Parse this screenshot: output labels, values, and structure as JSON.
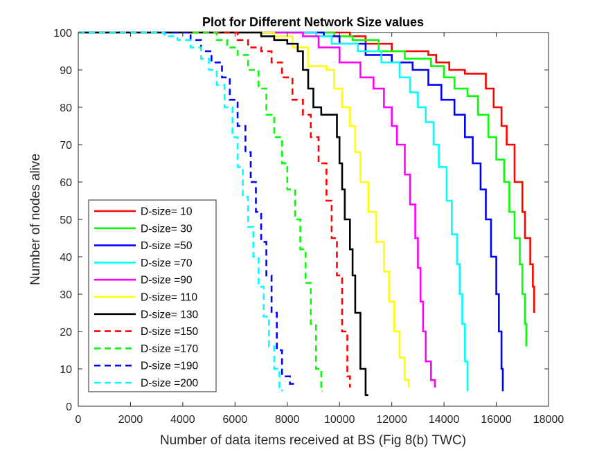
{
  "chart_data": {
    "type": "line",
    "title": "Plot for Different Network Size values",
    "xlabel": "Number of data items received at BS (Fig 8(b) TWC)",
    "ylabel": "Number of nodes alive",
    "xlim": [
      0,
      18000
    ],
    "ylim": [
      0,
      100
    ],
    "xticks": [
      0,
      2000,
      4000,
      6000,
      8000,
      10000,
      12000,
      14000,
      16000,
      18000
    ],
    "yticks": [
      0,
      10,
      20,
      30,
      40,
      50,
      60,
      70,
      80,
      90,
      100
    ],
    "grid": false,
    "legend_position": "bottom-left",
    "series": [
      {
        "name": "D-size= 10",
        "color": "#ff0000",
        "dash": false,
        "x": [
          0,
          10400,
          11000,
          12000,
          13400,
          13700,
          14200,
          14800,
          15600,
          15900,
          16200,
          16400,
          16700,
          17000,
          17100,
          17300,
          17400,
          17450
        ],
        "y": [
          100,
          99,
          97,
          95,
          94,
          92,
          90,
          89,
          85,
          80,
          75,
          70,
          60,
          52,
          45,
          38,
          32,
          25
        ]
      },
      {
        "name": "D-size= 30",
        "color": "#00ff00",
        "dash": false,
        "x": [
          0,
          9800,
          10500,
          11500,
          12500,
          13500,
          14000,
          14400,
          14900,
          15300,
          15700,
          16000,
          16300,
          16500,
          16700,
          16900,
          17000,
          17100,
          17150
        ],
        "y": [
          100,
          99,
          98,
          95,
          93,
          91,
          88,
          85,
          83,
          78,
          72,
          66,
          60,
          52,
          45,
          38,
          30,
          22,
          16
        ]
      },
      {
        "name": "D-size =50",
        "color": "#0000ff",
        "dash": false,
        "x": [
          0,
          9400,
          10000,
          11000,
          12000,
          12800,
          13400,
          13900,
          14400,
          14800,
          15100,
          15400,
          15600,
          15800,
          16000,
          16100,
          16200,
          16250
        ],
        "y": [
          100,
          99,
          97,
          94,
          92,
          90,
          86,
          82,
          78,
          72,
          65,
          58,
          50,
          40,
          30,
          20,
          10,
          4
        ]
      },
      {
        "name": "D-size =70",
        "color": "#00ffff",
        "dash": false,
        "x": [
          0,
          9100,
          9700,
          10700,
          11600,
          12300,
          12700,
          13000,
          13300,
          13600,
          13800,
          14100,
          14300,
          14500,
          14600,
          14700,
          14800,
          14900
        ],
        "y": [
          100,
          99,
          97,
          95,
          92,
          88,
          84,
          80,
          76,
          70,
          64,
          55,
          46,
          38,
          30,
          22,
          12,
          4
        ]
      },
      {
        "name": "D-size =90",
        "color": "#ff00ff",
        "dash": false,
        "x": [
          0,
          8600,
          9200,
          10000,
          10800,
          11300,
          11700,
          12000,
          12200,
          12500,
          12700,
          12900,
          13000,
          13100,
          13200,
          13300,
          13500,
          13650
        ],
        "y": [
          100,
          99,
          96,
          92,
          88,
          85,
          80,
          75,
          70,
          62,
          54,
          45,
          37,
          28,
          20,
          12,
          7,
          5
        ]
      },
      {
        "name": "D-size= 110",
        "color": "#ffff00",
        "dash": false,
        "x": [
          0,
          7500,
          8200,
          8800,
          9500,
          9800,
          10100,
          10400,
          10600,
          10800,
          11100,
          11400,
          11700,
          11900,
          12100,
          12300,
          12500,
          12650
        ],
        "y": [
          100,
          99,
          96,
          91,
          90,
          85,
          80,
          75,
          68,
          60,
          52,
          44,
          36,
          28,
          20,
          13,
          7,
          5
        ]
      },
      {
        "name": "D-size= 130",
        "color": "#000000",
        "dash": false,
        "x": [
          0,
          7000,
          7500,
          8000,
          8400,
          8600,
          8800,
          9000,
          9300,
          9700,
          9900,
          10000,
          10100,
          10200,
          10400,
          10500,
          10600,
          10800,
          11000,
          11100
        ],
        "y": [
          100,
          99,
          98,
          97,
          95,
          90,
          85,
          80,
          78,
          78,
          72,
          65,
          58,
          50,
          42,
          35,
          25,
          10,
          3,
          3
        ]
      },
      {
        "name": "D-size =150",
        "color": "#ff0000",
        "dash": true,
        "x": [
          0,
          6100,
          6500,
          7000,
          7400,
          7800,
          8200,
          8600,
          8900,
          9200,
          9500,
          9700,
          9900,
          10100,
          10300,
          10400
        ],
        "y": [
          100,
          98,
          96,
          95,
          92,
          88,
          82,
          78,
          72,
          65,
          55,
          45,
          35,
          20,
          8,
          5
        ]
      },
      {
        "name": "D-size =170",
        "color": "#00ff00",
        "dash": true,
        "x": [
          0,
          5300,
          5700,
          6100,
          6500,
          6900,
          7200,
          7500,
          7800,
          8000,
          8300,
          8500,
          8700,
          8900,
          9100,
          9300,
          9350
        ],
        "y": [
          100,
          98,
          96,
          94,
          90,
          85,
          78,
          72,
          65,
          58,
          50,
          42,
          33,
          22,
          10,
          4,
          4
        ]
      },
      {
        "name": "D-size =190",
        "color": "#0000ff",
        "dash": true,
        "x": [
          0,
          4300,
          4700,
          5100,
          5500,
          5800,
          6100,
          6400,
          6600,
          6800,
          7000,
          7200,
          7400,
          7600,
          7800,
          8100,
          8400
        ],
        "y": [
          100,
          98,
          95,
          92,
          88,
          82,
          75,
          68,
          60,
          52,
          44,
          35,
          25,
          15,
          8,
          6,
          6
        ]
      },
      {
        "name": "D-size =200",
        "color": "#00ffff",
        "dash": true,
        "x": [
          0,
          3300,
          3800,
          4300,
          4700,
          5000,
          5300,
          5600,
          5900,
          6100,
          6300,
          6500,
          6700,
          6900,
          7100,
          7300,
          7500,
          7700,
          7800
        ],
        "y": [
          100,
          99,
          98,
          96,
          93,
          90,
          86,
          80,
          72,
          64,
          56,
          48,
          40,
          32,
          24,
          16,
          10,
          5,
          4
        ]
      }
    ]
  }
}
